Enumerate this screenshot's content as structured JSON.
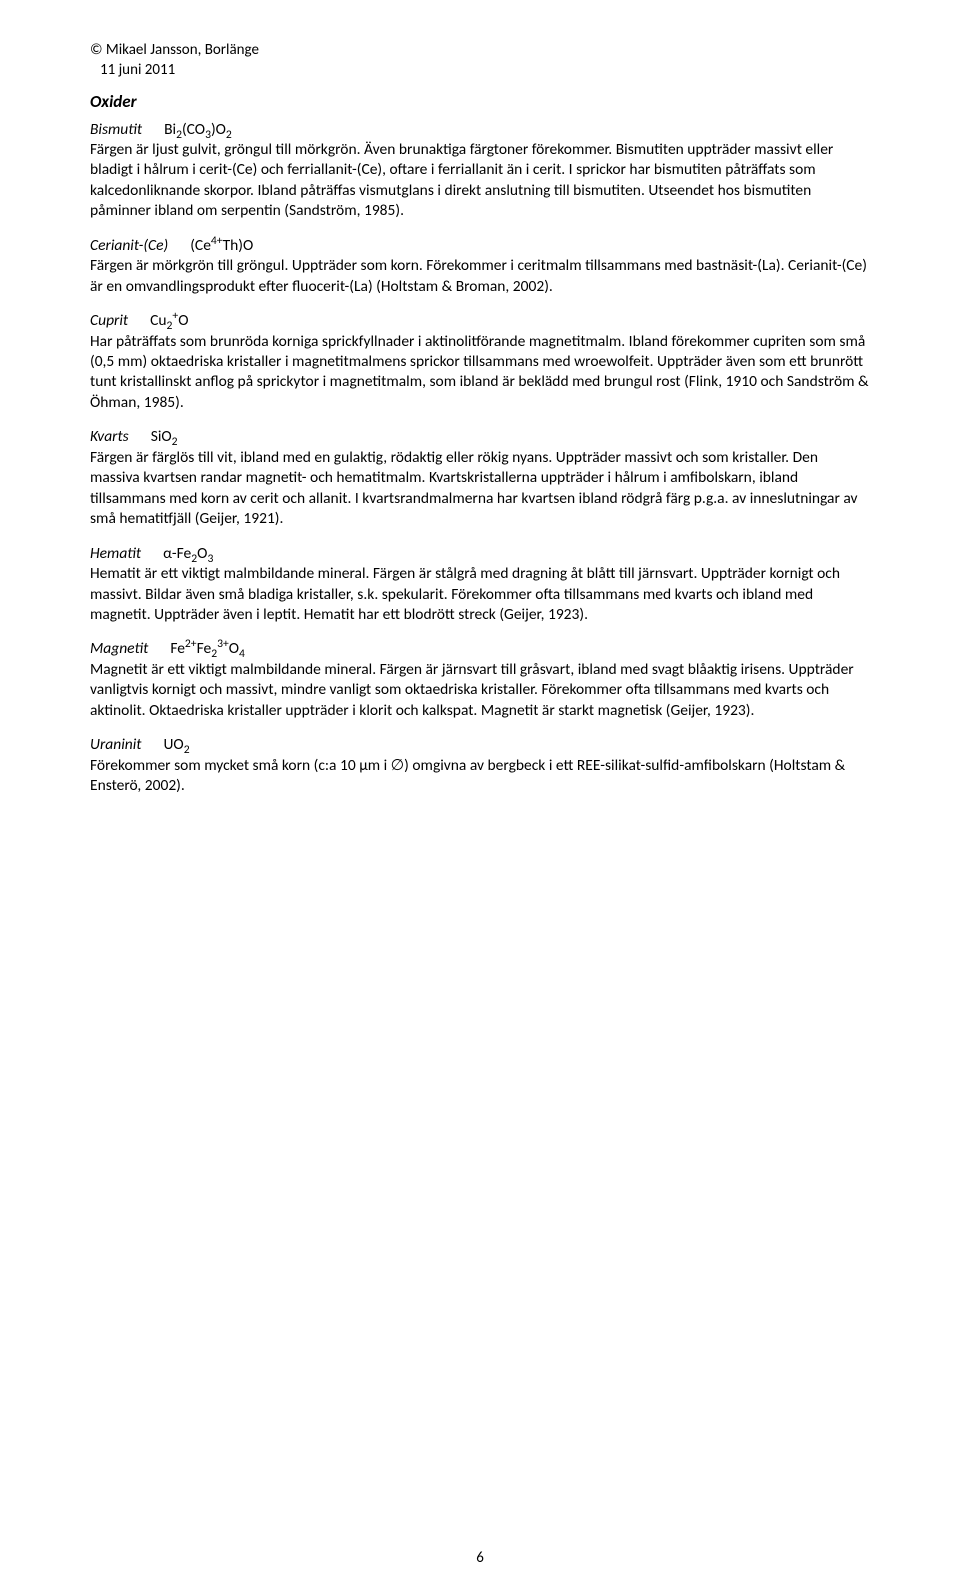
{
  "header": {
    "copyright": "© Mikael Jansson, Borlänge",
    "date": "11 juni 2011"
  },
  "section_title": "Oxider",
  "entries": [
    {
      "name": "Bismutit",
      "formula_html": "Bi<span class='sub'>2</span>(CO<span class='sub'>3</span>)O<span class='sub'>2</span>",
      "body": "Färgen är ljust gulvit, gröngul till mörkgrön. Även brunaktiga färgtoner förekommer. Bismutiten uppträder massivt eller bladigt i hålrum i cerit-(Ce) och ferriallanit-(Ce), oftare i ferriallanit än i cerit. I sprickor har bismutiten påträffats som kalcedonliknande skorpor. Ibland påträffas vismutglans i direkt anslutning till bismutiten. Utseendet hos bismutiten påminner ibland om serpentin (Sandström, 1985)."
    },
    {
      "name": "Cerianit-(Ce)",
      "formula_html": "(Ce<span class='sup'>4+</span>Th)O",
      "body": "Färgen är mörkgrön till gröngul. Uppträder som korn. Förekommer i ceritmalm tillsammans med bastnäsit-(La). Cerianit-(Ce) är en omvandlingsprodukt efter fluocerit-(La) (Holtstam & Broman, 2002)."
    },
    {
      "name": "Cuprit",
      "formula_html": "Cu<span class='sub'>2</span><span class='sup'>+</span>O",
      "body": "Har påträffats som brunröda korniga sprickfyllnader i aktinolitförande magnetitmalm. Ibland förekommer cupriten som små (0,5 mm) oktaedriska kristaller i magnetitmalmens sprickor tillsammans med wroewolfeit. Uppträder även som ett brunrött tunt kristallinskt anflog på sprickytor i magnetitmalm, som ibland är beklädd med brungul rost (Flink, 1910 och Sandström & Öhman, 1985)."
    },
    {
      "name": "Kvarts",
      "formula_html": "SiO<span class='sub'>2</span>",
      "body": "Färgen är färglös till vit, ibland med en gulaktig, rödaktig eller rökig nyans. Uppträder massivt och som kristaller. Den massiva kvartsen randar magnetit- och hematitmalm. Kvartskristallerna uppträder i hålrum i amfibolskarn, ibland tillsammans med korn av cerit och allanit. I kvartsrandmalmerna har kvartsen ibland rödgrå färg p.g.a. av inneslutningar av små hematitfjäll (Geijer, 1921)."
    },
    {
      "name": "Hematit",
      "formula_html": "α-Fe<span class='sub'>2</span>O<span class='sub'>3</span>",
      "body": "Hematit är ett viktigt malmbildande mineral. Färgen är stålgrå med dragning åt blått till järnsvart. Uppträder kornigt och massivt. Bildar även små bladiga kristaller, s.k. spekularit. Förekommer ofta tillsammans med kvarts och ibland med magnetit. Uppträder även i leptit. Hematit har ett blodrött streck (Geijer, 1923)."
    },
    {
      "name": "Magnetit",
      "formula_html": "Fe<span class='sup'>2+</span>Fe<span class='sub'>2</span><span class='sup'>3+</span>O<span class='sub'>4</span>",
      "body": "Magnetit är ett viktigt malmbildande mineral. Färgen är järnsvart till gråsvart, ibland med svagt blåaktig irisens. Uppträder vanligtvis kornigt och massivt, mindre vanligt som oktaedriska kristaller. Förekommer ofta tillsammans med kvarts och aktinolit. Oktaedriska kristaller uppträder i klorit och kalkspat. Magnetit är starkt magnetisk (Geijer, 1923)."
    },
    {
      "name": "Uraninit",
      "formula_html": "UO<span class='sub'>2</span>",
      "body": "Förekommer som mycket små korn (c:a 10 μm i ∅) omgivna av bergbeck i ett REE-silikat-sulfid-amfibolskarn (Holtstam & Ensterö, 2002)."
    }
  ],
  "page_number": "6"
}
